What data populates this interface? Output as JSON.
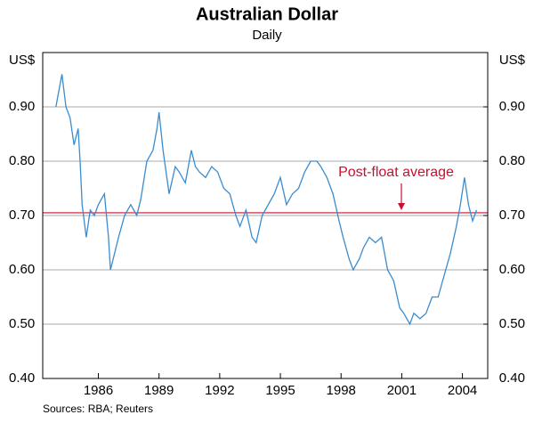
{
  "chart_data": {
    "type": "line",
    "title": "Australian Dollar",
    "subtitle": "Daily",
    "y_label": "US$",
    "y2_label": "US$",
    "source": "Sources: RBA; Reuters",
    "xlim": [
      1983.25,
      2005.25
    ],
    "xticks": [
      1986,
      1989,
      1992,
      1995,
      1998,
      2001,
      2004
    ],
    "ylim": [
      0.4,
      1.0
    ],
    "yticks": [
      {
        "value": 0.4,
        "label": "0.40"
      },
      {
        "value": 0.5,
        "label": "0.50"
      },
      {
        "value": 0.6,
        "label": "0.60"
      },
      {
        "value": 0.7,
        "label": "0.70"
      },
      {
        "value": 0.8,
        "label": "0.80"
      },
      {
        "value": 0.9,
        "label": "0.90"
      }
    ],
    "y2lim": [
      0.4,
      1.0
    ],
    "y2ticks": [
      {
        "value": 0.4,
        "label": "0.40"
      },
      {
        "value": 0.5,
        "label": "0.50"
      },
      {
        "value": 0.6,
        "label": "0.60"
      },
      {
        "value": 0.7,
        "label": "0.70"
      },
      {
        "value": 0.8,
        "label": "0.80"
      },
      {
        "value": 0.9,
        "label": "0.90"
      }
    ],
    "grid": true,
    "x": [
      1983.9,
      1984.1,
      1984.2,
      1984.4,
      1984.6,
      1984.8,
      1985.0,
      1985.1,
      1985.2,
      1985.4,
      1985.6,
      1985.8,
      1986.0,
      1986.3,
      1986.5,
      1986.6,
      1986.8,
      1987.0,
      1987.3,
      1987.6,
      1987.9,
      1988.1,
      1988.4,
      1988.7,
      1988.9,
      1989.0,
      1989.2,
      1989.5,
      1989.8,
      1990.0,
      1990.3,
      1990.6,
      1990.8,
      1991.0,
      1991.3,
      1991.6,
      1991.9,
      1992.2,
      1992.5,
      1992.8,
      1993.0,
      1993.3,
      1993.6,
      1993.8,
      1994.1,
      1994.4,
      1994.7,
      1995.0,
      1995.3,
      1995.6,
      1995.9,
      1996.2,
      1996.5,
      1996.8,
      1997.0,
      1997.3,
      1997.6,
      1997.9,
      1998.1,
      1998.4,
      1998.6,
      1998.9,
      1999.1,
      1999.4,
      1999.7,
      2000.0,
      2000.3,
      2000.6,
      2000.9,
      2001.1,
      2001.4,
      2001.6,
      2001.9,
      2002.2,
      2002.5,
      2002.8,
      2003.1,
      2003.4,
      2003.7,
      2003.9,
      2004.1,
      2004.3,
      2004.5,
      2004.7
    ],
    "series": [
      {
        "name": "AUD",
        "color": "#3a8ccf",
        "values": [
          0.9,
          0.94,
          0.96,
          0.9,
          0.88,
          0.83,
          0.86,
          0.8,
          0.72,
          0.66,
          0.71,
          0.7,
          0.72,
          0.74,
          0.66,
          0.6,
          0.63,
          0.66,
          0.7,
          0.72,
          0.7,
          0.73,
          0.8,
          0.82,
          0.86,
          0.89,
          0.82,
          0.74,
          0.79,
          0.78,
          0.76,
          0.82,
          0.79,
          0.78,
          0.77,
          0.79,
          0.78,
          0.75,
          0.74,
          0.7,
          0.68,
          0.71,
          0.66,
          0.65,
          0.7,
          0.72,
          0.74,
          0.77,
          0.72,
          0.74,
          0.75,
          0.78,
          0.8,
          0.8,
          0.79,
          0.77,
          0.74,
          0.69,
          0.66,
          0.62,
          0.6,
          0.62,
          0.64,
          0.66,
          0.65,
          0.66,
          0.6,
          0.58,
          0.53,
          0.52,
          0.5,
          0.52,
          0.51,
          0.52,
          0.55,
          0.55,
          0.59,
          0.63,
          0.68,
          0.72,
          0.77,
          0.72,
          0.69,
          0.71
        ]
      }
    ],
    "average": {
      "label": "Post-float average",
      "value": 0.705,
      "color": "#c8102e"
    }
  }
}
